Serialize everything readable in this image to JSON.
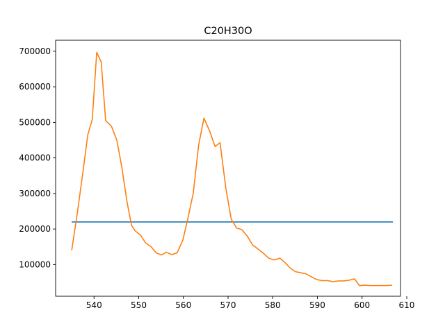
{
  "chart_data": {
    "type": "line",
    "title": "C20H30O",
    "xlabel": "",
    "ylabel": "",
    "xlim": [
      531.4,
      608.6
    ],
    "ylim": [
      11000,
      731000
    ],
    "xticks": [
      540,
      550,
      560,
      570,
      580,
      590,
      600,
      610
    ],
    "yticks": [
      100000,
      200000,
      300000,
      400000,
      500000,
      600000,
      700000
    ],
    "grid": false,
    "legend": "none",
    "series": [
      {
        "color": "#1f77b4",
        "x": [
          535.0,
          606.9
        ],
        "y": [
          220000,
          220000
        ]
      },
      {
        "color": "#ff7f0e",
        "x": [
          535.0,
          536.2,
          537.4,
          538.6,
          539.6,
          540.6,
          541.6,
          542.6,
          543.9,
          545.1,
          546.2,
          547.4,
          548.4,
          549.2,
          550.4,
          551.6,
          552.8,
          553.9,
          555.1,
          556.2,
          557.4,
          558.6,
          559.9,
          561.0,
          562.2,
          563.4,
          564.6,
          565.8,
          567.1,
          568.2,
          569.5,
          570.7,
          571.9,
          573.1,
          574.3,
          575.5,
          576.7,
          577.9,
          579.1,
          580.3,
          581.6,
          582.8,
          583.9,
          585.1,
          586.3,
          587.4,
          588.6,
          589.8,
          591.0,
          592.3,
          593.5,
          594.7,
          595.9,
          597.1,
          598.3,
          599.4,
          600.6,
          601.8,
          603.0,
          604.3,
          605.5,
          606.7
        ],
        "y": [
          140000,
          240000,
          350000,
          465000,
          508000,
          697000,
          670000,
          505000,
          489000,
          450000,
          375000,
          275000,
          210000,
          195000,
          183000,
          160000,
          150000,
          133000,
          127000,
          135000,
          128000,
          133000,
          170000,
          230000,
          300000,
          435000,
          512000,
          478000,
          432000,
          443000,
          315000,
          228000,
          203000,
          198000,
          180000,
          155000,
          144000,
          132000,
          118000,
          113000,
          118000,
          105000,
          90000,
          80000,
          77000,
          74000,
          66000,
          58000,
          55000,
          55000,
          52000,
          54000,
          54000,
          56000,
          60000,
          41000,
          42000,
          41000,
          41000,
          41000,
          41000,
          42000
        ]
      }
    ]
  }
}
